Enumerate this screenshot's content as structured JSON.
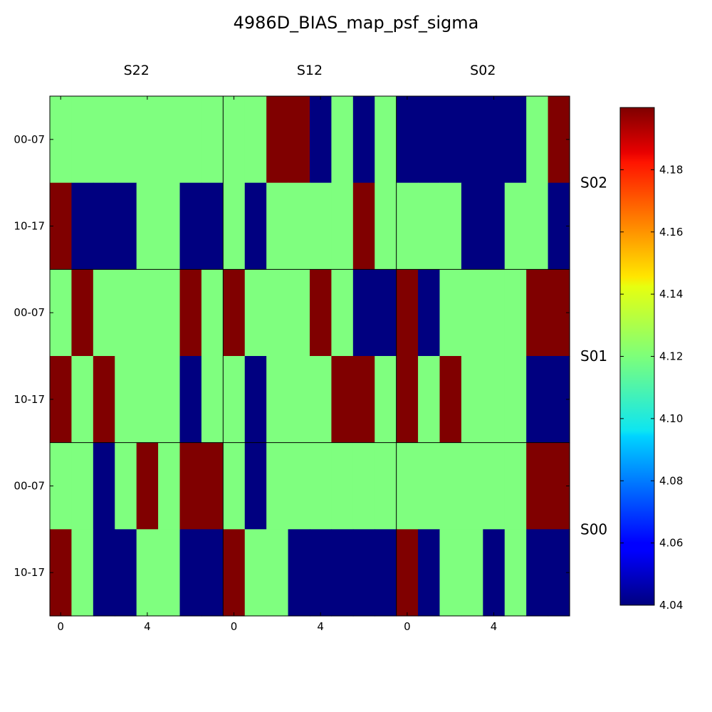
{
  "chart_data": {
    "type": "heatmap",
    "title": "4986D_BIAS_map_psf_sigma",
    "column_labels": [
      "S22",
      "S12",
      "S02"
    ],
    "row_labels": [
      "S02",
      "S01",
      "S00"
    ],
    "y_tick_labels": [
      "00-07",
      "10-17",
      "00-07",
      "10-17",
      "00-07",
      "10-17"
    ],
    "x_tick_labels": [
      "0",
      "4",
      "0",
      "4",
      "0",
      "4"
    ],
    "colormap": "jet",
    "value_legend": {
      "red": 4.2,
      "green": 4.12,
      "blue": 4.04
    },
    "colorbar": {
      "range": [
        4.04,
        4.2
      ],
      "ticks": [
        "4.04",
        "4.06",
        "4.08",
        "4.10",
        "4.12",
        "4.14",
        "4.16",
        "4.18"
      ]
    },
    "grid_rows": [
      "GGGGGGGG",
      "RBBBGGBB",
      "GRGGGGRG",
      "RGRGGGBG",
      "GGBGRGRR",
      "RGBBGGBB"
    ],
    "grid": [
      [
        "GGGGGGGG",
        "GGRRBGBG",
        "BBBBBBGR"
      ],
      [
        "RBBBGGBB",
        "GBGGGGRG",
        "GGGBBGGB"
      ],
      [
        "GRGGGGRG",
        "RGGGRGBB",
        "RBGGGGRR"
      ],
      [
        "RGRGGGBG",
        "GBGGGRRG",
        "RGRGGGBB"
      ],
      [
        "GGBGRGRR",
        "GBGGGGGG",
        "GGGGGGRR"
      ],
      [
        "RGBBGGBB",
        "RGGBBBBB",
        "RBGGBGBB"
      ]
    ],
    "colors": {
      "R": "#800000",
      "G": "#7fff7f",
      "B": "#000080"
    }
  }
}
